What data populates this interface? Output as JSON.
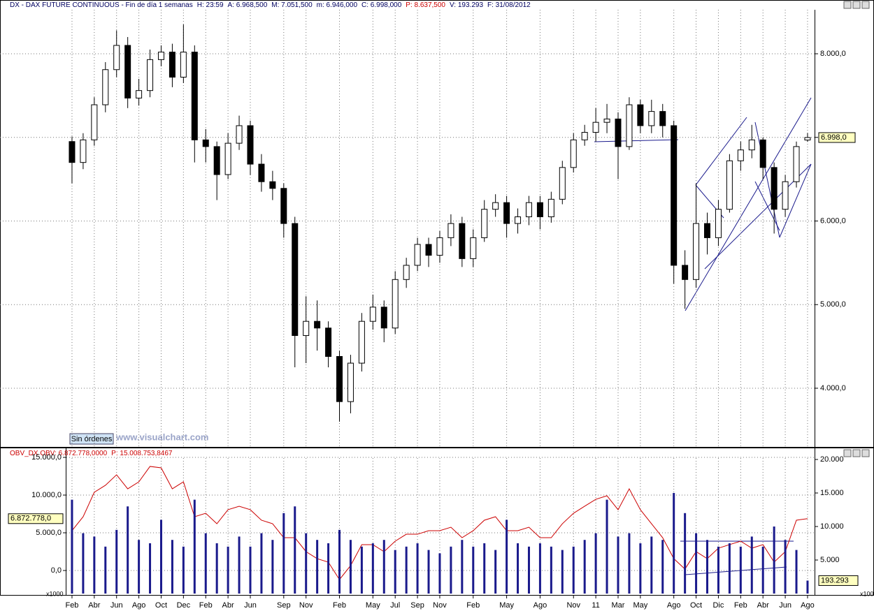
{
  "overlay": {
    "button": "Sin órdenes",
    "watermark": "www.visualchart.com"
  },
  "chart_data": [
    {
      "type": "candlestick",
      "title_parts": [
        {
          "text": "DX - DAX FUTURE CONTINUOUS - Fin de día 1 semanas",
          "color": "#000060"
        },
        {
          "text": "H: 23:59",
          "color": "#000060"
        },
        {
          "text": "A: 6.968,500",
          "color": "#000060"
        },
        {
          "text": "M: 7.051,500",
          "color": "#000060"
        },
        {
          "text": "m: 6.946,000",
          "color": "#000060"
        },
        {
          "text": "C: 6.998,000",
          "color": "#000060"
        },
        {
          "text": "P: 8.637,500",
          "color": "#cc0000"
        },
        {
          "text": "V: 193.293",
          "color": "#000060"
        },
        {
          "text": "F: 31/08/2012",
          "color": "#000060"
        }
      ],
      "x": [
        1,
        2,
        3,
        4,
        5,
        6,
        7,
        8,
        9,
        10,
        11,
        12,
        13,
        14,
        15,
        16,
        17,
        18,
        19,
        20,
        21,
        22,
        23,
        24,
        25,
        26,
        27,
        28,
        29,
        30,
        31,
        32,
        33,
        34,
        35,
        36,
        37,
        38,
        39,
        40,
        41,
        42,
        43,
        44,
        45,
        46,
        47,
        48,
        49,
        50,
        51,
        52,
        53,
        54,
        55,
        56,
        57,
        58,
        59,
        60,
        61,
        62,
        63,
        64,
        65,
        66,
        67
      ],
      "open": [
        6950,
        6700,
        6970,
        7390,
        7810,
        8100,
        7470,
        7560,
        7930,
        8020,
        7720,
        8020,
        6970,
        6890,
        6555,
        6930,
        7140,
        6680,
        6470,
        6390,
        5970,
        4630,
        4800,
        4720,
        4380,
        3840,
        4300,
        4800,
        4970,
        4720,
        5300,
        5470,
        5720,
        5590,
        5800,
        5970,
        5550,
        5800,
        6140,
        6220,
        5970,
        6050,
        6220,
        6050,
        6260,
        6640,
        6970,
        7060,
        7180,
        7220,
        6890,
        7390,
        7140,
        7310,
        7140,
        5470,
        5300,
        5970,
        5800,
        6140,
        6720,
        6850,
        6970,
        6640,
        6140,
        6470,
        6968.5
      ],
      "high": [
        7010,
        7050,
        7480,
        7900,
        8280,
        8200,
        7700,
        8050,
        8100,
        8120,
        8350,
        8100,
        7100,
        6950,
        7050,
        7260,
        7200,
        6800,
        6600,
        6450,
        6050,
        5100,
        5050,
        4800,
        4450,
        4400,
        4900,
        5120,
        5050,
        5400,
        5560,
        5800,
        5800,
        5880,
        6080,
        6050,
        5900,
        6250,
        6320,
        6300,
        6150,
        6300,
        6300,
        6350,
        6720,
        7050,
        7150,
        7350,
        7400,
        7300,
        7480,
        7450,
        7450,
        7400,
        7200,
        5650,
        6450,
        6100,
        6250,
        6800,
        6950,
        7150,
        7000,
        6700,
        6550,
        6950,
        7051.5
      ],
      "low": [
        6450,
        6620,
        6900,
        7300,
        7720,
        7350,
        7380,
        7480,
        7850,
        7600,
        7650,
        6700,
        6700,
        6250,
        6500,
        6850,
        6550,
        6350,
        6250,
        5800,
        4250,
        4300,
        4450,
        4250,
        3600,
        3700,
        4200,
        4700,
        4550,
        4650,
        5200,
        5400,
        5450,
        5500,
        5700,
        5450,
        5450,
        5750,
        6050,
        5800,
        5850,
        5950,
        5900,
        5980,
        6200,
        6580,
        6900,
        6950,
        7050,
        6500,
        6850,
        7050,
        7050,
        7000,
        5250,
        4950,
        5200,
        5600,
        5700,
        6100,
        6600,
        6750,
        6500,
        5850,
        6050,
        6400,
        6946
      ],
      "close": [
        6700,
        6970,
        7390,
        7810,
        8100,
        7470,
        7560,
        7930,
        8020,
        7720,
        8020,
        6970,
        6890,
        6555,
        6930,
        7140,
        6680,
        6470,
        6390,
        5970,
        4630,
        4800,
        4720,
        4380,
        3840,
        4300,
        4800,
        4970,
        4720,
        5300,
        5470,
        5720,
        5590,
        5800,
        5970,
        5550,
        5800,
        6140,
        6220,
        5970,
        6050,
        6220,
        6050,
        6260,
        6640,
        6970,
        7060,
        7180,
        7220,
        6890,
        7390,
        7140,
        7310,
        7140,
        5470,
        5300,
        5970,
        5800,
        6140,
        6720,
        6850,
        6970,
        6640,
        6140,
        6470,
        6890,
        6998
      ],
      "up_color": "#ffffff",
      "down_color": "#000000",
      "xlim": [
        -5.46,
        67.63
      ],
      "xticks": [
        {
          "value": 1,
          "label": "Feb"
        },
        {
          "value": 3,
          "label": "Abr"
        },
        {
          "value": 5,
          "label": "Jun"
        },
        {
          "value": 7,
          "label": "Ago"
        },
        {
          "value": 9,
          "label": "Oct"
        },
        {
          "value": 11,
          "label": "Dec"
        },
        {
          "value": 13,
          "label": "Feb"
        },
        {
          "value": 15,
          "label": "Abr"
        },
        {
          "value": 17,
          "label": "Jun"
        },
        {
          "value": 20,
          "label": "Sep"
        },
        {
          "value": 22,
          "label": "Nov"
        },
        {
          "value": 25,
          "label": "Feb"
        },
        {
          "value": 28,
          "label": "May"
        },
        {
          "value": 30,
          "label": "Jul"
        },
        {
          "value": 32,
          "label": "Sep"
        },
        {
          "value": 34,
          "label": "Nov"
        },
        {
          "value": 37,
          "label": "Feb"
        },
        {
          "value": 40,
          "label": "May"
        },
        {
          "value": 43,
          "label": "Ago"
        },
        {
          "value": 46,
          "label": "Nov"
        },
        {
          "value": 48,
          "label": "11"
        },
        {
          "value": 50,
          "label": "Mar"
        },
        {
          "value": 52,
          "label": "May"
        },
        {
          "value": 55,
          "label": "Ago"
        },
        {
          "value": 57,
          "label": "Oct"
        },
        {
          "value": 59,
          "label": "Dic"
        },
        {
          "value": 61,
          "label": "Feb"
        },
        {
          "value": 63,
          "label": "Abr"
        },
        {
          "value": 65,
          "label": "Jun"
        },
        {
          "value": 67,
          "label": "Ago"
        }
      ],
      "ylim": [
        3290,
        8526
      ],
      "yticks": [
        {
          "value": 4000,
          "label": "4.000,0"
        },
        {
          "value": 5000,
          "label": "5.000,0"
        },
        {
          "value": 6000,
          "label": "6.000,0"
        },
        {
          "value": 7000,
          "label": "7.000,0"
        },
        {
          "value": 8000,
          "label": "8.000,0"
        }
      ],
      "grid": true,
      "last_label": "6.998,0"
    },
    {
      "type": "line",
      "title_parts": [
        {
          "text": "OBV_DX OBV: 6.872.778,0000",
          "color": "#cc0000"
        },
        {
          "text": "P: 15.008.753,8467",
          "color": "#cc0000"
        }
      ],
      "series": [
        {
          "type": "line",
          "axis": "y",
          "color": "#cc0000",
          "last_label": "6.872.778,0",
          "values": [
            5280,
            7130,
            10370,
            11300,
            12690,
            10830,
            11760,
            13800,
            13610,
            10830,
            11760,
            7130,
            7590,
            6200,
            8060,
            8520,
            8060,
            6670,
            6200,
            4350,
            4350,
            2500,
            1570,
            1110,
            -1200,
            650,
            3430,
            3430,
            2500,
            3890,
            4810,
            4810,
            5280,
            5280,
            5740,
            4350,
            5280,
            6670,
            7130,
            5280,
            5280,
            5740,
            4350,
            4350,
            6200,
            7590,
            8520,
            9440,
            9910,
            8060,
            10830,
            8060,
            6200,
            4350,
            1570,
            190,
            2500,
            1570,
            2960,
            3430,
            3890,
            2960,
            3430,
            1110,
            2500,
            6670,
            6872.778
          ]
        },
        {
          "type": "bar",
          "axis": "y2",
          "color": "#1a1a8c",
          "last_label": "193.293",
          "values": [
            14000,
            9000,
            8500,
            7000,
            9500,
            13000,
            8000,
            7500,
            11000,
            8000,
            7000,
            14000,
            9000,
            7500,
            7000,
            8500,
            7000,
            9000,
            8000,
            12000,
            13000,
            9000,
            8000,
            7500,
            9500,
            8000,
            7000,
            7500,
            8000,
            6500,
            7000,
            7500,
            6500,
            6000,
            7000,
            8000,
            7000,
            7500,
            6500,
            11000,
            7500,
            7000,
            7500,
            7000,
            6500,
            7000,
            8000,
            9000,
            14000,
            8500,
            9000,
            7500,
            8500,
            8000,
            15000,
            12000,
            9000,
            8000,
            7000,
            7500,
            7000,
            8500,
            7000,
            10000,
            8000,
            6500,
            1932.93
          ]
        }
      ],
      "ylim": [
        -3241,
        16296
      ],
      "yticks": [
        {
          "value": 0,
          "label": "0,0"
        },
        {
          "value": 5000,
          "label": "5.000,0"
        },
        {
          "value": 10000,
          "label": "10.000,0"
        },
        {
          "value": 15000,
          "label": "15.000,0"
        }
      ],
      "y2lim": [
        -208,
        21771
      ],
      "y2ticks": [
        {
          "value": 5000,
          "label": "5.000"
        },
        {
          "value": 10000,
          "label": "10.000"
        },
        {
          "value": 15000,
          "label": "15.000"
        },
        {
          "value": 20000,
          "label": "20.000"
        }
      ],
      "ylabel": "x1000",
      "y2label": "x100",
      "grid": true
    }
  ]
}
